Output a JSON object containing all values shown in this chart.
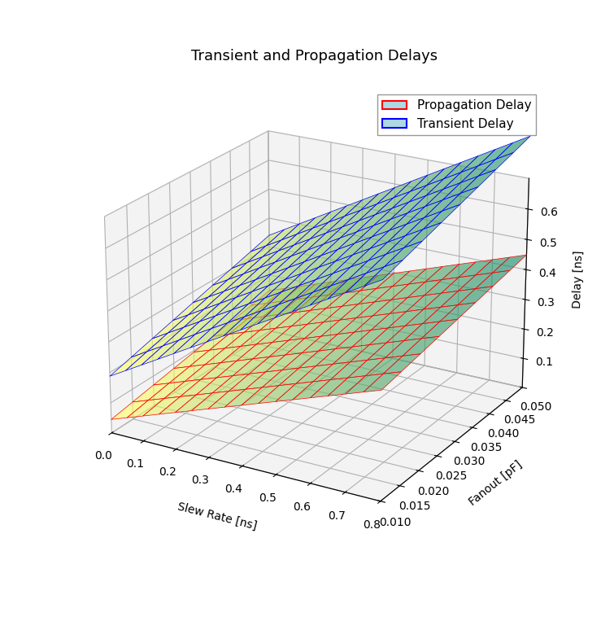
{
  "title": "Transient and Propagation Delays",
  "xlabel": "Slew Rate [ns]",
  "ylabel": "Fanout [pF]",
  "zlabel": "Delay [ns]",
  "slew_rate_range": [
    0.0,
    0.8
  ],
  "slew_rate_steps": 17,
  "fanout_range": [
    0.01,
    0.05
  ],
  "fanout_steps": 9,
  "prop_delay_base": 0.02,
  "prop_delay_slew_coeff": 0.38,
  "prop_delay_fanout_coeff": 2.5,
  "trans_delay_base": 0.15,
  "trans_delay_slew_coeff": 0.62,
  "trans_delay_fanout_coeff": 3.8,
  "prop_color": "red",
  "trans_color": "blue",
  "prop_alpha": 0.6,
  "trans_alpha": 0.6,
  "zlim": [
    0.0,
    0.7
  ],
  "elev": 22,
  "azim": -60,
  "legend_prop_label": "Propagation Delay",
  "legend_trans_label": "Transient Delay",
  "title_fontsize": 13,
  "pane_color": "#e8e8e8",
  "xticks": [
    0.0,
    0.1,
    0.2,
    0.3,
    0.4,
    0.5,
    0.6,
    0.7,
    0.8
  ],
  "yticks": [
    0.01,
    0.015,
    0.02,
    0.025,
    0.03,
    0.035,
    0.04,
    0.045,
    0.05
  ],
  "zticks": [
    0.1,
    0.2,
    0.3,
    0.4,
    0.5,
    0.6
  ]
}
